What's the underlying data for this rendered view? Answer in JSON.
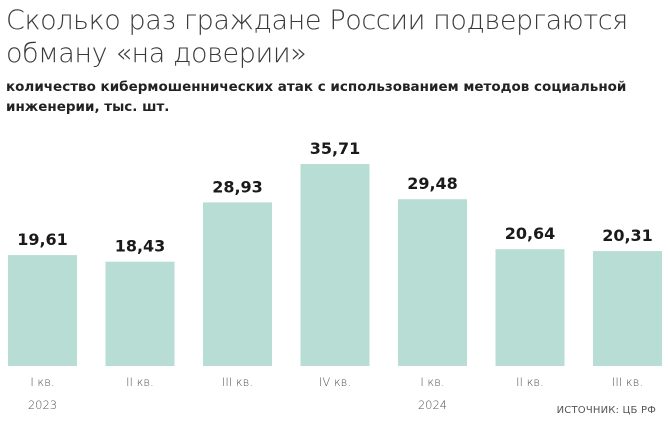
{
  "header": {
    "title": "Сколько раз граждане России подвергаются обману «на доверии»",
    "subtitle": "количество кибермошеннических атак с использованием методов социальной инженерии, тыс. шт."
  },
  "source": "ИСТОЧНИК: ЦБ РФ",
  "colors": {
    "bar": "#b7ddd5",
    "text": "#1a1a1a",
    "axis_text": "#555555"
  },
  "chart_data": {
    "type": "bar",
    "title": "Сколько раз граждане России подвергаются обману «на доверии»",
    "subtitle": "количество кибермошеннических атак с использованием методов социальной инженерии, тыс. шт.",
    "categories": [
      "I кв.",
      "II кв.",
      "III кв.",
      "IV кв.",
      "I кв.",
      "II кв.",
      "III кв."
    ],
    "groups": [
      {
        "label": "2023",
        "start": 0,
        "end": 3
      },
      {
        "label": "2024",
        "start": 4,
        "end": 6
      }
    ],
    "values": [
      19.61,
      18.43,
      28.93,
      35.71,
      29.48,
      20.64,
      20.31
    ],
    "value_labels": [
      "19,61",
      "18,43",
      "28,93",
      "35,71",
      "29,48",
      "20,64",
      "20,31"
    ],
    "xlabel": "",
    "ylabel": "",
    "ylim": [
      0,
      35.71
    ],
    "grid": false,
    "legend": "none"
  }
}
